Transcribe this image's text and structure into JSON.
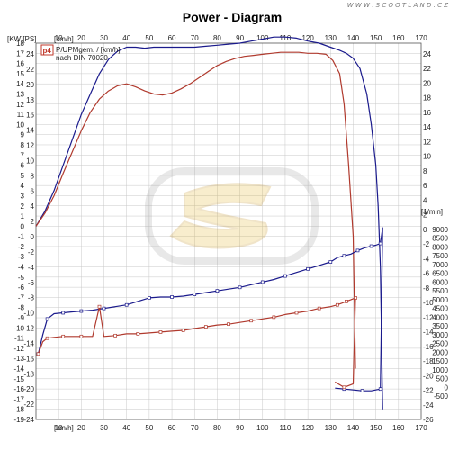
{
  "watermark": "W W W . S C O O T L A N D . C Z",
  "logo_badge": "p4",
  "chart_data": {
    "type": "line",
    "title": "Power - Diagram",
    "legend": [
      "P/UPMgem. / [km/h]",
      "nach DIN 70020"
    ],
    "grid": true,
    "legend_placement": "top-left",
    "units": {
      "left_kw_ps": "[KW][PS]",
      "x_top": "[km/h]",
      "x_bottom": "[km/h]",
      "right_rpm": "[1/min]"
    },
    "x_range": [
      0,
      170
    ],
    "x_ticks": [
      "10",
      "20",
      "30",
      "40",
      "50",
      "60",
      "70",
      "80",
      "90",
      "100",
      "110",
      "120",
      "130",
      "140",
      "150",
      "160",
      "170"
    ],
    "kw_range": [
      -19,
      18
    ],
    "kw_ticks": [
      "18",
      "17",
      "16",
      "15",
      "14",
      "13",
      "12",
      "11",
      "10",
      "9",
      "8",
      "7",
      "6",
      "5",
      "4",
      "3",
      "2",
      "1",
      "0",
      "-1",
      "-2",
      "-3",
      "-4",
      "-5",
      "-6",
      "-7",
      "-8",
      "-9",
      "-10",
      "-11",
      "-12",
      "-13",
      "-14",
      "-15",
      "-16",
      "-17",
      "-18",
      "-19"
    ],
    "ps_ticks": [
      "24",
      "22",
      "20",
      "18",
      "16",
      "14",
      "12",
      "10",
      "8",
      "6",
      "4",
      "2",
      "0",
      "-2",
      "-4",
      "-6",
      "-8",
      "-10",
      "-12",
      "-14",
      "-16",
      "-18",
      "-20",
      "-22",
      "-24"
    ],
    "rpm_ticks": [
      "9000",
      "8500",
      "8000",
      "7500",
      "7000",
      "6500",
      "6000",
      "5500",
      "5000",
      "4500",
      "4000",
      "3500",
      "3000",
      "2500",
      "2000",
      "1500",
      "1000",
      "500",
      "0",
      "-500"
    ],
    "right_ps_ticks": [
      "24",
      "22",
      "20",
      "18",
      "16",
      "14",
      "12",
      "10",
      "8",
      "6",
      "4",
      "2",
      "0",
      "-2",
      "-4",
      "-6",
      "-8",
      "-10",
      "-12",
      "-14",
      "-16",
      "-18",
      "-20",
      "-22",
      "-24",
      "-26"
    ],
    "series": [
      {
        "color": "#1a1a8c",
        "axis": "kw",
        "x": [
          0,
          4,
          8,
          12,
          16,
          20,
          24,
          28,
          32,
          36,
          40,
          44,
          48,
          52,
          56,
          60,
          65,
          70,
          75,
          80,
          85,
          90,
          95,
          100,
          105,
          110,
          115,
          120,
          125,
          130,
          134,
          137,
          140,
          143,
          146,
          148,
          150,
          151,
          152,
          153
        ],
        "values": [
          0,
          1.5,
          3.5,
          6,
          8.5,
          11,
          13,
          15,
          16.4,
          17.2,
          17.6,
          17.6,
          17.5,
          17.6,
          17.6,
          17.6,
          17.6,
          17.6,
          17.7,
          17.8,
          17.9,
          18.0,
          18.2,
          18.4,
          18.6,
          18.6,
          18.5,
          18.2,
          18.0,
          17.6,
          17.3,
          17.0,
          16.5,
          15.5,
          13,
          10,
          6,
          2,
          -4,
          -18
        ]
      },
      {
        "color": "#b03a2e",
        "axis": "kw",
        "x": [
          0,
          4,
          8,
          12,
          16,
          20,
          24,
          28,
          32,
          36,
          40,
          44,
          48,
          52,
          56,
          60,
          64,
          68,
          72,
          76,
          80,
          84,
          88,
          92,
          96,
          100,
          104,
          108,
          112,
          116,
          120,
          124,
          128,
          131,
          134,
          136,
          138,
          140,
          141
        ],
        "values": [
          0,
          1.3,
          3,
          5.2,
          7.3,
          9.4,
          11.2,
          12.5,
          13.3,
          13.8,
          14.0,
          13.7,
          13.3,
          13.0,
          12.9,
          13.1,
          13.5,
          14.0,
          14.6,
          15.2,
          15.8,
          16.2,
          16.5,
          16.7,
          16.8,
          16.9,
          17.0,
          17.1,
          17.1,
          17.1,
          17.0,
          17.0,
          16.9,
          16.3,
          15,
          12,
          6,
          -1,
          -14
        ]
      },
      {
        "color": "#1a1a8c",
        "axis": "rpm",
        "x": [
          1,
          3,
          5,
          8,
          12,
          16,
          20,
          25,
          30,
          35,
          40,
          45,
          50,
          55,
          60,
          65,
          70,
          75,
          80,
          85,
          90,
          95,
          100,
          105,
          110,
          115,
          120,
          125,
          130,
          133,
          136,
          139,
          142,
          145,
          148,
          150,
          152,
          153,
          152,
          148,
          144,
          140,
          136,
          132
        ],
        "values": [
          1900,
          3000,
          3900,
          4200,
          4250,
          4300,
          4350,
          4400,
          4500,
          4600,
          4700,
          4900,
          5100,
          5150,
          5150,
          5200,
          5300,
          5400,
          5500,
          5600,
          5700,
          5850,
          6000,
          6150,
          6350,
          6550,
          6750,
          6950,
          7150,
          7400,
          7500,
          7600,
          7800,
          7950,
          8050,
          8100,
          8200,
          9100,
          -100,
          -200,
          -200,
          -150,
          -100,
          -50
        ]
      },
      {
        "color": "#b03a2e",
        "axis": "rpm",
        "x": [
          1,
          3,
          5,
          8,
          12,
          16,
          20,
          25,
          28,
          30,
          35,
          40,
          45,
          50,
          55,
          60,
          65,
          70,
          75,
          80,
          85,
          90,
          95,
          100,
          105,
          110,
          115,
          120,
          125,
          130,
          133,
          135,
          137,
          139,
          141,
          140,
          136,
          132
        ],
        "values": [
          1900,
          2600,
          2800,
          2850,
          2900,
          2900,
          2900,
          2900,
          4600,
          2900,
          2950,
          3050,
          3050,
          3100,
          3150,
          3200,
          3250,
          3350,
          3450,
          3550,
          3600,
          3700,
          3800,
          3900,
          4000,
          4150,
          4250,
          4350,
          4500,
          4600,
          4700,
          4800,
          4900,
          5000,
          5100,
          200,
          0,
          300
        ]
      }
    ]
  }
}
